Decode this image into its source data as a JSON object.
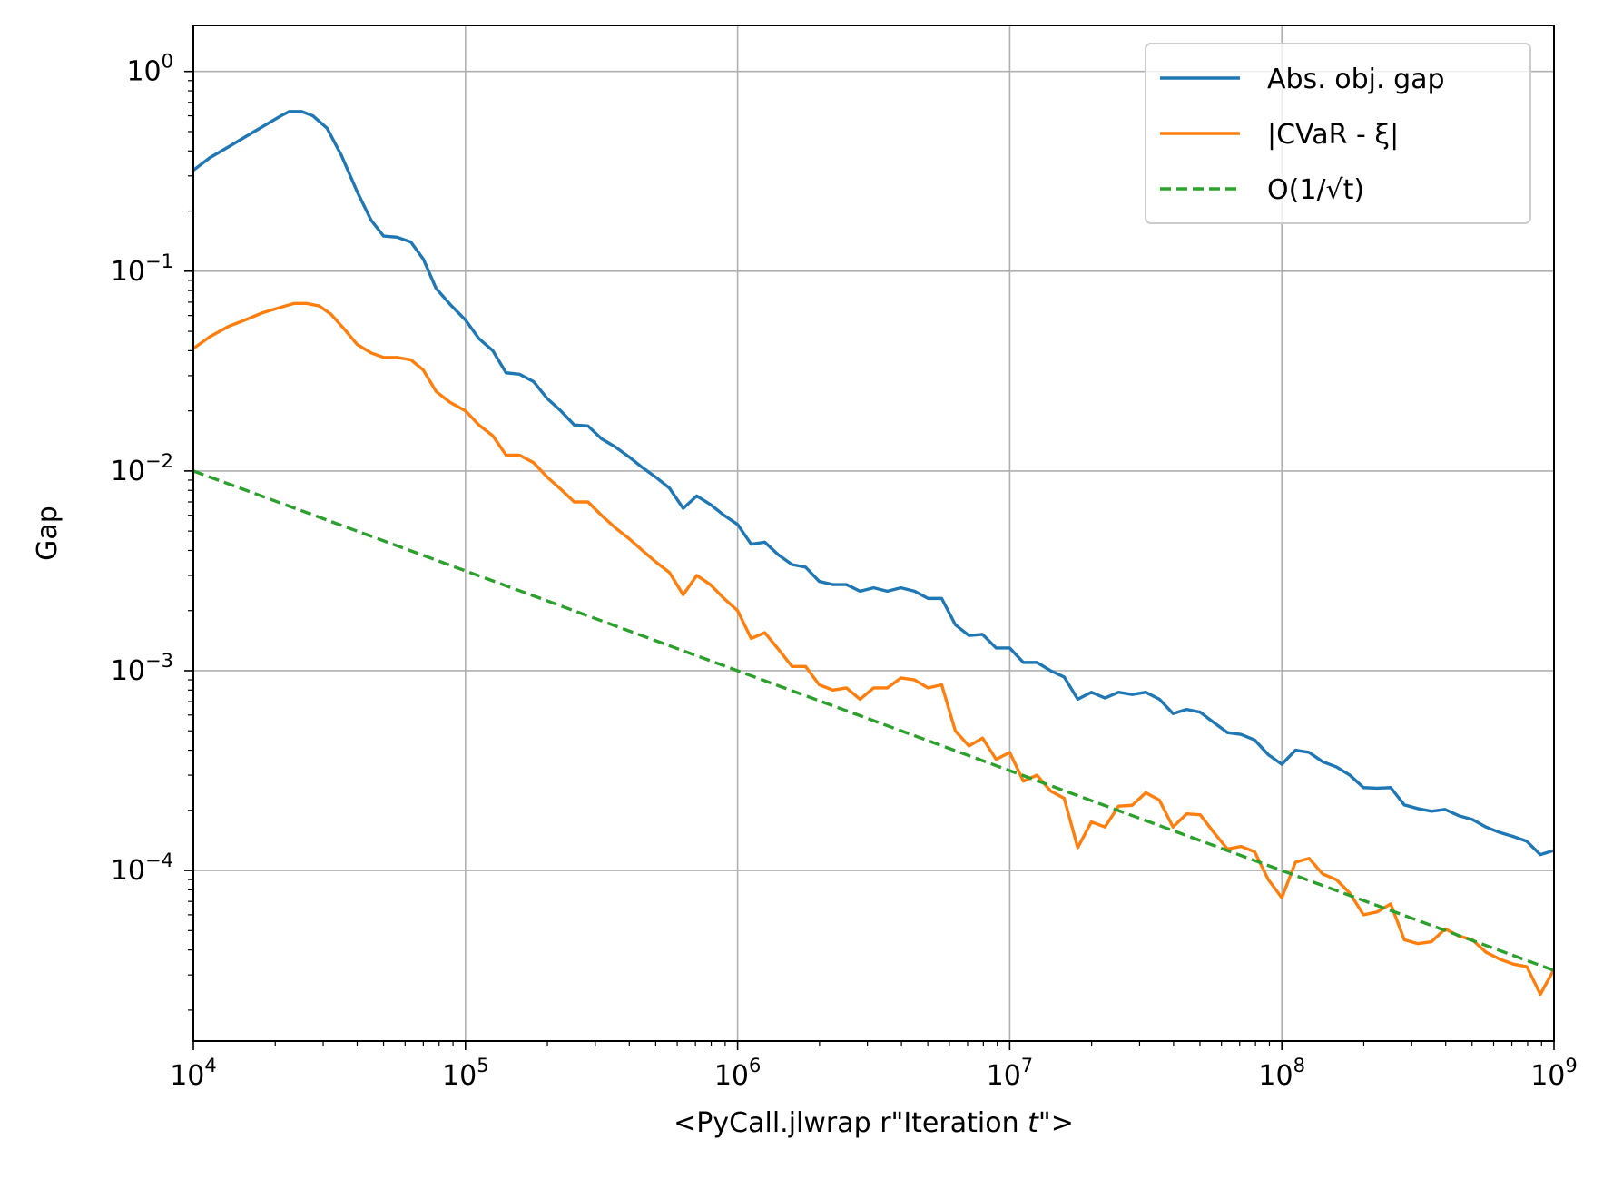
{
  "chart_data": {
    "type": "line",
    "title": "",
    "xlabel_prefix": "<PyCall.jlwrap r\"Iteration ",
    "xlabel_var": "t",
    "xlabel_suffix": "\">",
    "ylabel": "Gap",
    "xscale": "log",
    "yscale": "log",
    "xlim": [
      10000,
      1000000000
    ],
    "ylim": [
      1.4e-05,
      1.7
    ],
    "grid": true,
    "legend_position": "top-right",
    "x_ticks": [
      {
        "value": 10000,
        "base": "10",
        "exp": "4"
      },
      {
        "value": 100000,
        "base": "10",
        "exp": "5"
      },
      {
        "value": 1000000,
        "base": "10",
        "exp": "6"
      },
      {
        "value": 10000000,
        "base": "10",
        "exp": "7"
      },
      {
        "value": 100000000,
        "base": "10",
        "exp": "8"
      },
      {
        "value": 1000000000,
        "base": "10",
        "exp": "9"
      }
    ],
    "y_ticks": [
      {
        "value": 1,
        "base": "10",
        "exp": "0"
      },
      {
        "value": 0.1,
        "base": "10",
        "exp": "−1"
      },
      {
        "value": 0.01,
        "base": "10",
        "exp": "−2"
      },
      {
        "value": 0.001,
        "base": "10",
        "exp": "−3"
      },
      {
        "value": 0.0001,
        "base": "10",
        "exp": "−4"
      }
    ],
    "series": [
      {
        "name": "Abs. obj. gap",
        "color": "#1f77b4",
        "dash": "solid",
        "points": [
          [
            10000,
            0.32
          ],
          [
            11500,
            0.37
          ],
          [
            13500,
            0.42
          ],
          [
            15500,
            0.47
          ],
          [
            18000,
            0.53
          ],
          [
            21000,
            0.6
          ],
          [
            22500,
            0.63
          ],
          [
            25000,
            0.63
          ],
          [
            27500,
            0.6
          ],
          [
            31000,
            0.52
          ],
          [
            35000,
            0.38
          ],
          [
            40000,
            0.25
          ],
          [
            45000,
            0.18
          ],
          [
            50000,
            0.15
          ],
          [
            56000,
            0.148
          ],
          [
            63000,
            0.14
          ],
          [
            70000,
            0.115
          ],
          [
            78000,
            0.082
          ],
          [
            88000,
            0.068
          ],
          [
            100000,
            0.057
          ],
          [
            112000,
            0.046
          ],
          [
            126000,
            0.04
          ],
          [
            141000,
            0.031
          ],
          [
            158000,
            0.0305
          ],
          [
            178000,
            0.028
          ],
          [
            200000,
            0.023
          ],
          [
            224000,
            0.02
          ],
          [
            251000,
            0.017
          ],
          [
            282000,
            0.0168
          ],
          [
            316000,
            0.0145
          ],
          [
            355000,
            0.0132
          ],
          [
            398000,
            0.0118
          ],
          [
            447000,
            0.0104
          ],
          [
            501000,
            0.0093
          ],
          [
            562000,
            0.0082
          ],
          [
            631000,
            0.0065
          ],
          [
            708000,
            0.0075
          ],
          [
            794000,
            0.0068
          ],
          [
            891000,
            0.006
          ],
          [
            1000000,
            0.0054
          ],
          [
            1122000,
            0.0043
          ],
          [
            1259000,
            0.0044
          ],
          [
            1413000,
            0.0038
          ],
          [
            1585000,
            0.0034
          ],
          [
            1778000,
            0.0033
          ],
          [
            1995000,
            0.0028
          ],
          [
            2239000,
            0.0027
          ],
          [
            2512000,
            0.0027
          ],
          [
            2818000,
            0.0025
          ],
          [
            3162000,
            0.0026
          ],
          [
            3548000,
            0.0025
          ],
          [
            3981000,
            0.0026
          ],
          [
            4467000,
            0.0025
          ],
          [
            5012000,
            0.0023
          ],
          [
            5623000,
            0.0023
          ],
          [
            6310000,
            0.0017
          ],
          [
            7079000,
            0.0015
          ],
          [
            7943000,
            0.00152
          ],
          [
            8913000,
            0.0013
          ],
          [
            10000000,
            0.0013
          ],
          [
            11220000,
            0.0011
          ],
          [
            12590000,
            0.0011
          ],
          [
            14130000,
            0.001
          ],
          [
            15850000,
            0.00093
          ],
          [
            17780000,
            0.00072
          ],
          [
            19950000,
            0.00078
          ],
          [
            22390000,
            0.00073
          ],
          [
            25120000,
            0.00078
          ],
          [
            28180000,
            0.00076
          ],
          [
            31620000,
            0.00078
          ],
          [
            35480000,
            0.00072
          ],
          [
            39810000,
            0.00061
          ],
          [
            44670000,
            0.00064
          ],
          [
            50120000,
            0.00062
          ],
          [
            56230000,
            0.00055
          ],
          [
            63100000,
            0.00049
          ],
          [
            70790000,
            0.00048
          ],
          [
            79430000,
            0.00045
          ],
          [
            89130000,
            0.00038
          ],
          [
            100000000,
            0.00034
          ],
          [
            112200000,
            0.0004
          ],
          [
            125900000,
            0.00039
          ],
          [
            141300000,
            0.00035
          ],
          [
            158500000,
            0.00033
          ],
          [
            177800000,
            0.0003
          ],
          [
            199500000,
            0.00026
          ],
          [
            223900000,
            0.000258
          ],
          [
            251200000,
            0.00026
          ],
          [
            281800000,
            0.000213
          ],
          [
            316200000,
            0.000204
          ],
          [
            354800000,
            0.000198
          ],
          [
            398100000,
            0.000202
          ],
          [
            446700000,
            0.000188
          ],
          [
            501200000,
            0.00018
          ],
          [
            562300000,
            0.000165
          ],
          [
            631000000,
            0.000155
          ],
          [
            707900000,
            0.000148
          ],
          [
            794300000,
            0.00014
          ],
          [
            891300000,
            0.00012
          ],
          [
            1000000000,
            0.000126
          ]
        ]
      },
      {
        "name": "|CVaR - ξ|",
        "color": "#ff7f0e",
        "dash": "solid",
        "points": [
          [
            10000,
            0.041
          ],
          [
            11500,
            0.047
          ],
          [
            13500,
            0.053
          ],
          [
            15500,
            0.057
          ],
          [
            18000,
            0.062
          ],
          [
            21000,
            0.066
          ],
          [
            23500,
            0.069
          ],
          [
            26000,
            0.069
          ],
          [
            29000,
            0.067
          ],
          [
            32000,
            0.061
          ],
          [
            36000,
            0.051
          ],
          [
            40000,
            0.043
          ],
          [
            45000,
            0.039
          ],
          [
            50000,
            0.037
          ],
          [
            56000,
            0.037
          ],
          [
            63000,
            0.036
          ],
          [
            70000,
            0.032
          ],
          [
            78000,
            0.025
          ],
          [
            88000,
            0.022
          ],
          [
            100000,
            0.02
          ],
          [
            112000,
            0.017
          ],
          [
            126000,
            0.015
          ],
          [
            141000,
            0.012
          ],
          [
            158000,
            0.012
          ],
          [
            178000,
            0.011
          ],
          [
            200000,
            0.0093
          ],
          [
            224000,
            0.0081
          ],
          [
            251000,
            0.007
          ],
          [
            282000,
            0.007
          ],
          [
            316000,
            0.006
          ],
          [
            355000,
            0.0052
          ],
          [
            398000,
            0.0046
          ],
          [
            447000,
            0.004
          ],
          [
            501000,
            0.0035
          ],
          [
            562000,
            0.0031
          ],
          [
            631000,
            0.0024
          ],
          [
            708000,
            0.003
          ],
          [
            794000,
            0.0027
          ],
          [
            891000,
            0.0023
          ],
          [
            1000000,
            0.002
          ],
          [
            1122000,
            0.00145
          ],
          [
            1259000,
            0.00155
          ],
          [
            1413000,
            0.00128
          ],
          [
            1585000,
            0.00105
          ],
          [
            1778000,
            0.00105
          ],
          [
            1995000,
            0.00085
          ],
          [
            2239000,
            0.0008
          ],
          [
            2512000,
            0.00082
          ],
          [
            2818000,
            0.00072
          ],
          [
            3162000,
            0.00082
          ],
          [
            3548000,
            0.00082
          ],
          [
            3981000,
            0.00092
          ],
          [
            4467000,
            0.0009
          ],
          [
            5012000,
            0.00082
          ],
          [
            5623000,
            0.00085
          ],
          [
            6310000,
            0.0005
          ],
          [
            7079000,
            0.00042
          ],
          [
            7943000,
            0.00046
          ],
          [
            8913000,
            0.00036
          ],
          [
            10000000,
            0.00039
          ],
          [
            11220000,
            0.00028
          ],
          [
            12590000,
            0.0003
          ],
          [
            14130000,
            0.00025
          ],
          [
            15850000,
            0.00023
          ],
          [
            17780000,
            0.00013
          ],
          [
            19950000,
            0.000175
          ],
          [
            22390000,
            0.000165
          ],
          [
            25120000,
            0.00021
          ],
          [
            28180000,
            0.000212
          ],
          [
            31620000,
            0.000245
          ],
          [
            35480000,
            0.000225
          ],
          [
            39810000,
            0.000165
          ],
          [
            44670000,
            0.000192
          ],
          [
            50120000,
            0.00019
          ],
          [
            56230000,
            0.000155
          ],
          [
            63100000,
            0.000128
          ],
          [
            70790000,
            0.000132
          ],
          [
            79430000,
            0.000124
          ],
          [
            89130000,
            9e-05
          ],
          [
            100000000,
            7.3e-05
          ],
          [
            112200000,
            0.00011
          ],
          [
            125900000,
            0.000115
          ],
          [
            141300000,
            9.6e-05
          ],
          [
            158500000,
            9e-05
          ],
          [
            177800000,
            7.7e-05
          ],
          [
            199500000,
            6e-05
          ],
          [
            223900000,
            6.2e-05
          ],
          [
            251200000,
            6.8e-05
          ],
          [
            281800000,
            4.5e-05
          ],
          [
            316200000,
            4.3e-05
          ],
          [
            354800000,
            4.4e-05
          ],
          [
            398100000,
            5.1e-05
          ],
          [
            446700000,
            4.7e-05
          ],
          [
            501200000,
            4.5e-05
          ],
          [
            562300000,
            3.9e-05
          ],
          [
            631000000,
            3.6e-05
          ],
          [
            707900000,
            3.4e-05
          ],
          [
            794300000,
            3.3e-05
          ],
          [
            891300000,
            2.4e-05
          ],
          [
            1000000000,
            3.2e-05
          ]
        ]
      },
      {
        "name": "O(1/√t)",
        "color": "#2ca02c",
        "dash": "dashed",
        "points": [
          [
            10000,
            0.01
          ],
          [
            1000000000,
            3.16e-05
          ]
        ]
      }
    ]
  }
}
